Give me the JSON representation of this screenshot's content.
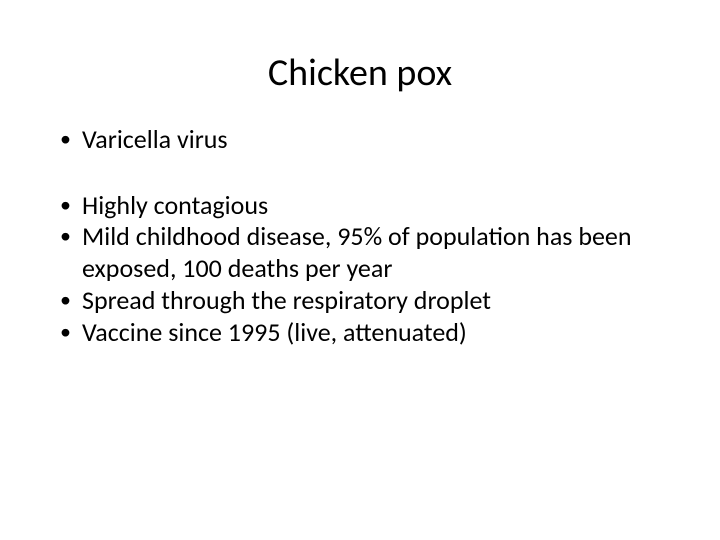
{
  "slide": {
    "title": "Chicken pox",
    "bullets_group1": [
      "Varicella virus"
    ],
    "bullets_group2": [
      "Highly contagious",
      "Mild childhood disease, 95% of population has been exposed, 100 deaths per year",
      "Spread through the respiratory droplet",
      "Vaccine since 1995 (live, attenuated)"
    ]
  },
  "style": {
    "background_color": "#ffffff",
    "text_color": "#000000",
    "title_fontsize": 38,
    "body_fontsize": 26,
    "font_family": "Calibri",
    "bullet_char": "•"
  }
}
